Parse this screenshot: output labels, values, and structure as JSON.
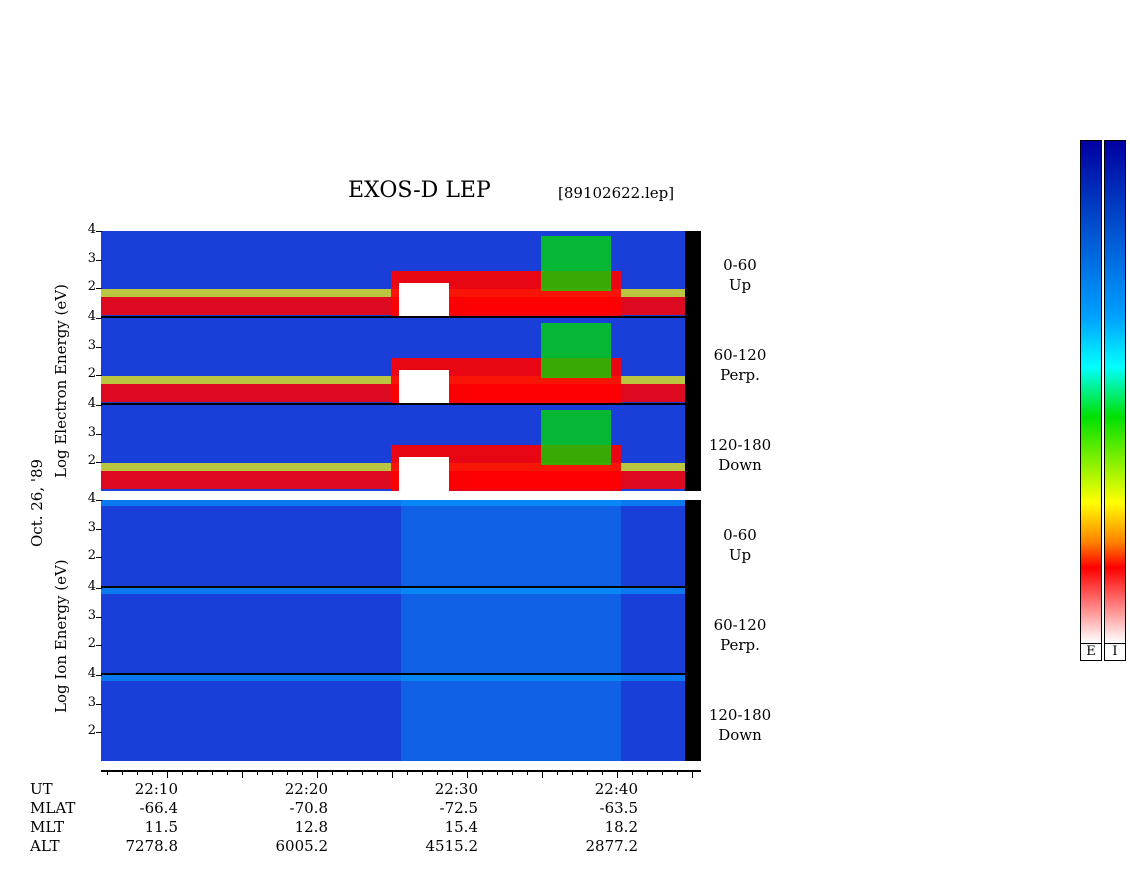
{
  "header": {
    "title": "EXOS-D LEP",
    "filename": "[89102622.lep]"
  },
  "electron_ylabel": "Log   Electron   Energy (eV)",
  "ion_ylabel": "Log   Ion   Energy (eV)",
  "date_label": "Oct. 26, '89",
  "channels": {
    "electron": [
      {
        "range": "0-60",
        "dir": "Up"
      },
      {
        "range": "60-120",
        "dir": "Perp."
      },
      {
        "range": "120-180",
        "dir": "Down"
      }
    ],
    "ion": [
      {
        "range": "0-60",
        "dir": "Up"
      },
      {
        "range": "60-120",
        "dir": "Perp."
      },
      {
        "range": "120-180",
        "dir": "Down"
      }
    ]
  },
  "chart_data": {
    "type": "heatmap",
    "title": "EXOS-D LEP",
    "subtitle": "[89102622.lep]",
    "xlabel": "UT",
    "x_ticks": [
      "22:10",
      "22:20",
      "22:30",
      "22:40"
    ],
    "ylim": [
      1,
      4
    ],
    "y_ticks": [
      "2",
      "3",
      "4"
    ],
    "y_scale": "log",
    "ephemeris": {
      "rows": [
        "UT",
        "MLAT",
        "MLT",
        "ALT"
      ],
      "values": {
        "UT": [
          "22:10",
          "22:20",
          "22:30",
          "22:40"
        ],
        "MLAT": [
          "-66.4",
          "-70.8",
          "-72.5",
          "-63.5"
        ],
        "MLT": [
          "11.5",
          "12.8",
          "15.4",
          "18.2"
        ],
        "ALT": [
          "7278.8",
          "6005.2",
          "4515.2",
          "2877.2"
        ]
      }
    },
    "colorbar_labels": [
      "E",
      "I"
    ],
    "colors": {
      "low": "#0000a0",
      "mid_low": "#00a0ff",
      "mid": "#00e000",
      "mid_high": "#ffff00",
      "high": "#ff0000",
      "max": "#ffffff"
    }
  }
}
